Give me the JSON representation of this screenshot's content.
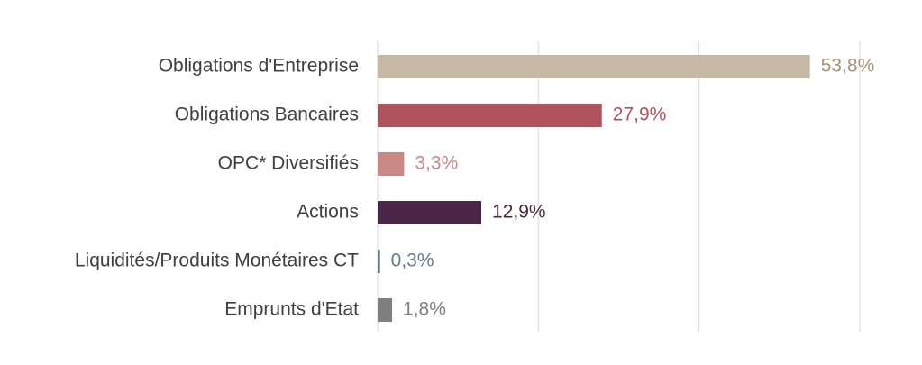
{
  "chart_data": {
    "type": "bar",
    "orientation": "horizontal",
    "categories": [
      "Obligations d'Entreprise",
      "Obligations Bancaires",
      "OPC* Diversifiés",
      "Actions",
      "Liquidités/Produits Monétaires CT",
      "Emprunts d'Etat"
    ],
    "values": [
      53.8,
      27.9,
      3.3,
      12.9,
      0.3,
      1.8
    ],
    "value_labels": [
      "53,8%",
      "27,9%",
      "3,3%",
      "12,9%",
      "0,3%",
      "1,8%"
    ],
    "colors": [
      "#c6b9a3",
      "#b0535f",
      "#c98883",
      "#4b2646",
      "#67798b",
      "#7f7f7f"
    ],
    "label_colors": [
      "#a89472",
      "#b0535f",
      "#c98883",
      "#4b2646",
      "#67798b",
      "#7f7f7f"
    ],
    "xlim": [
      0,
      60
    ],
    "grid": true,
    "legend": "none"
  }
}
